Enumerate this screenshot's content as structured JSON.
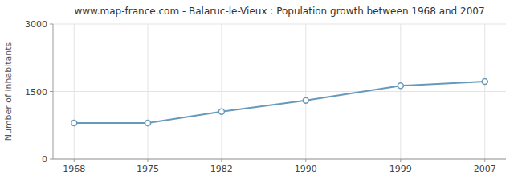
{
  "chart_data": {
    "type": "line",
    "title": "www.map-france.com - Balaruc-le-Vieux : Population growth between 1968 and 2007",
    "ylabel": "Number of inhabitants",
    "x": [
      1968,
      1975,
      1982,
      1990,
      1999,
      2007
    ],
    "values": [
      800,
      800,
      1050,
      1300,
      1630,
      1720
    ],
    "color": "#6699bb",
    "marker": "circle",
    "xlim": [
      1966,
      2009
    ],
    "xticks": [
      1968,
      1975,
      1982,
      1990,
      1999,
      2007
    ],
    "ylim": [
      0,
      3000
    ],
    "yticks": [
      0,
      1500,
      3000
    ],
    "grid": true
  }
}
